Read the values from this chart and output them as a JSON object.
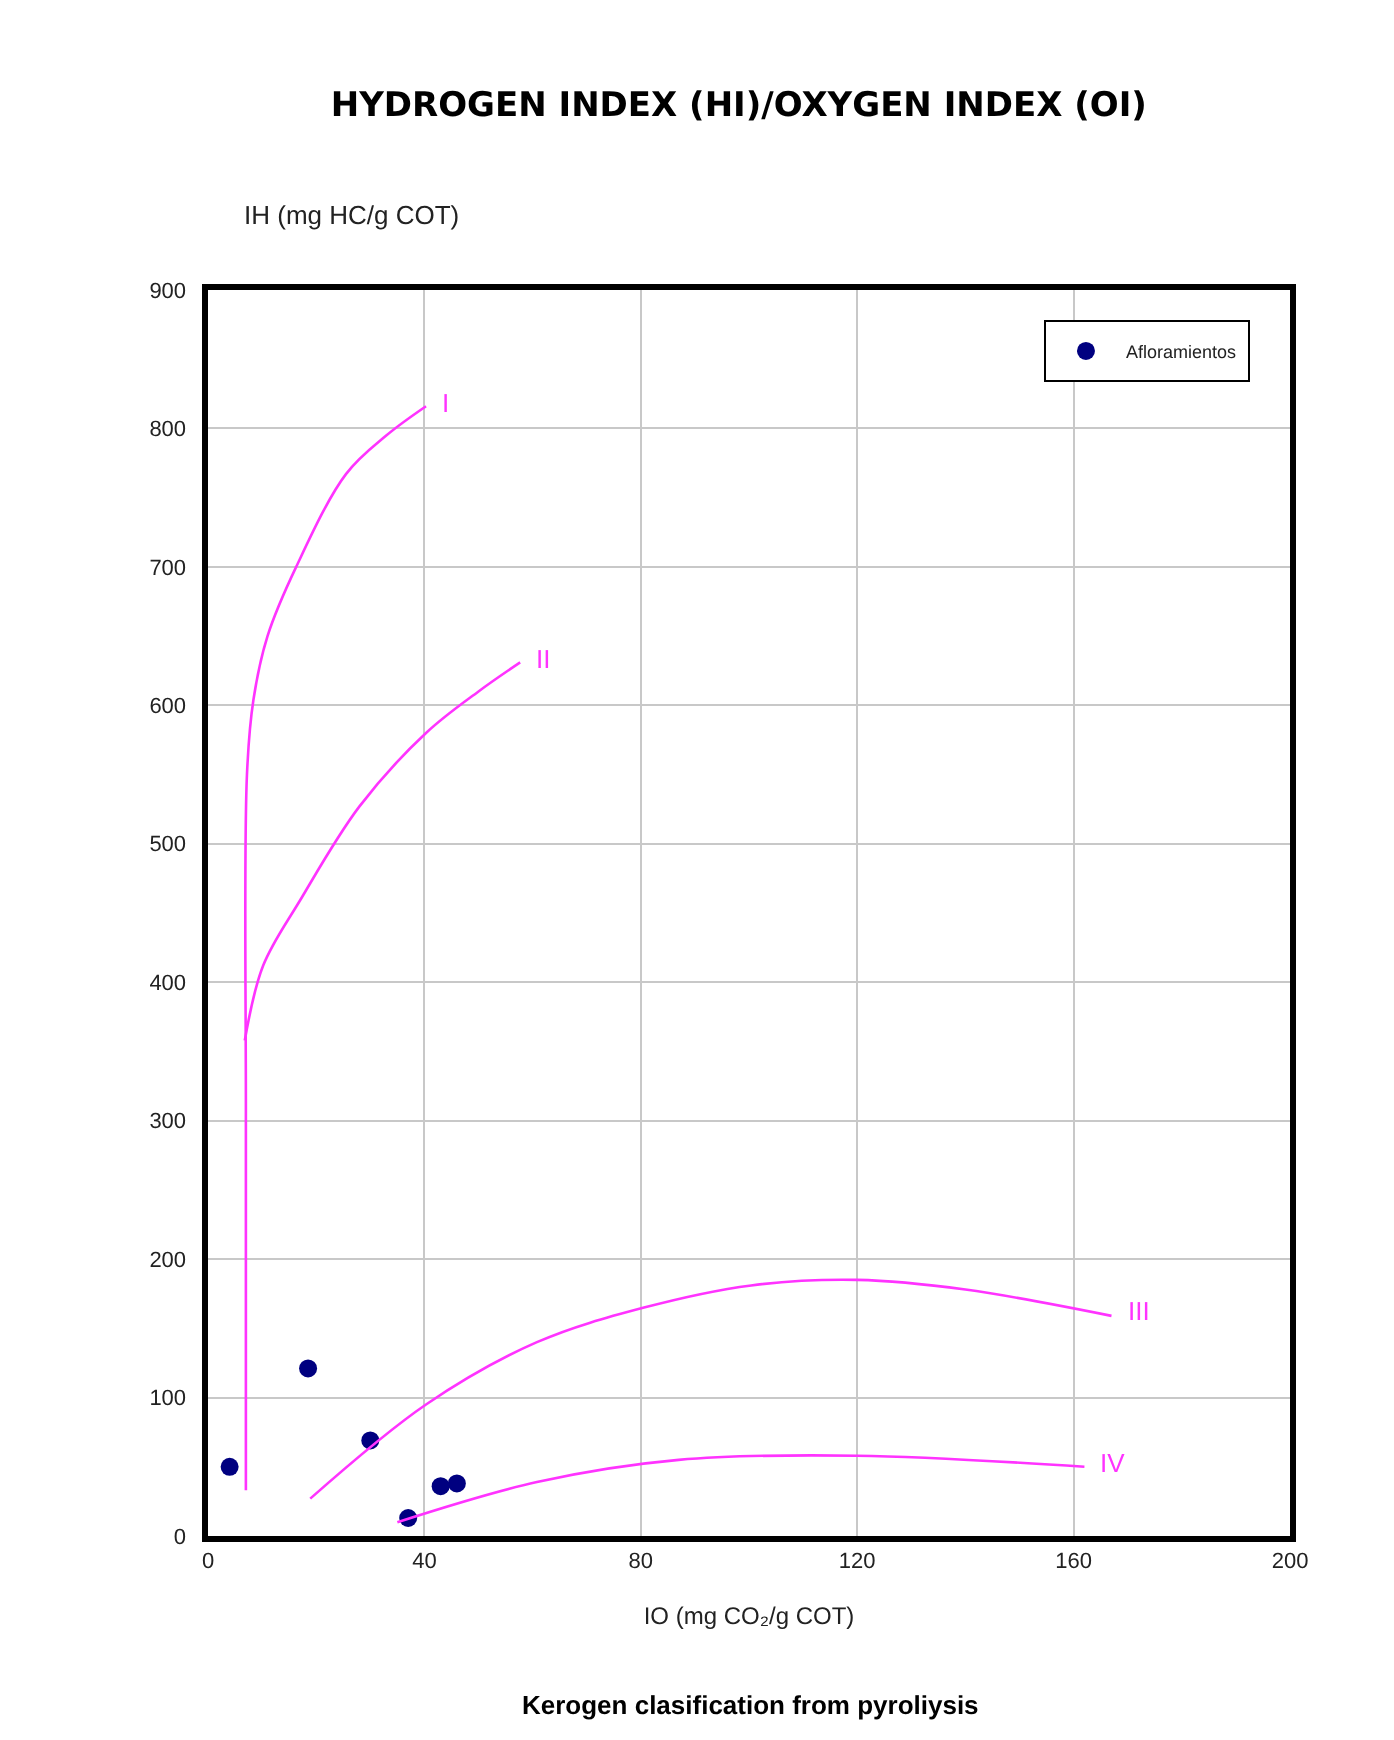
{
  "chart_data": {
    "type": "scatter",
    "title": "HYDROGEN INDEX (HI)/OXYGEN INDEX (OI)",
    "xlabel": "IO (mg CO₂/g COT)",
    "ylabel": "IH (mg HC/g COT)",
    "annotations": [
      "Kerogen clasification from pyroliysis"
    ],
    "xlim": [
      0,
      200
    ],
    "xticks": [
      0,
      40,
      80,
      120,
      160,
      200
    ],
    "ylim": [
      0,
      900
    ],
    "yticks": [
      0,
      100,
      200,
      300,
      400,
      500,
      600,
      700,
      800,
      900
    ],
    "grid": true,
    "legend": "top right",
    "series": [
      {
        "name": "Afloramientos",
        "marker": "circle",
        "color": "#000080",
        "x": [
          4,
          18.5,
          30,
          43,
          46,
          37
        ],
        "values": [
          50,
          121,
          69,
          36,
          38,
          13
        ]
      },
      {
        "name": "I",
        "type": "line",
        "color": "#ff33ff",
        "x": [
          7,
          7,
          7.2,
          8.4,
          11,
          16.3,
          25.5,
          33,
          40.3
        ],
        "values": [
          33,
          300,
          550,
          604,
          650,
          700,
          767,
          795,
          816
        ]
      },
      {
        "name": "II",
        "type": "line",
        "color": "#ff33ff",
        "x": [
          6.8,
          10.2,
          17,
          28,
          40.3,
          50,
          57.7
        ],
        "values": [
          358,
          412,
          459,
          527,
          580,
          610,
          631
        ]
      },
      {
        "name": "III",
        "type": "line",
        "color": "#ff33ff",
        "x": [
          18.9,
          40.3,
          60.8,
          80.6,
          100.4,
          120,
          140,
          167
        ],
        "values": [
          27,
          95,
          140,
          165,
          181,
          185,
          178,
          159
        ]
      },
      {
        "name": "IV",
        "type": "line",
        "color": "#ff33ff",
        "x": [
          35,
          60.8,
          87,
          120,
          162
        ],
        "values": [
          10,
          39,
          55,
          58,
          50
        ]
      }
    ]
  }
}
